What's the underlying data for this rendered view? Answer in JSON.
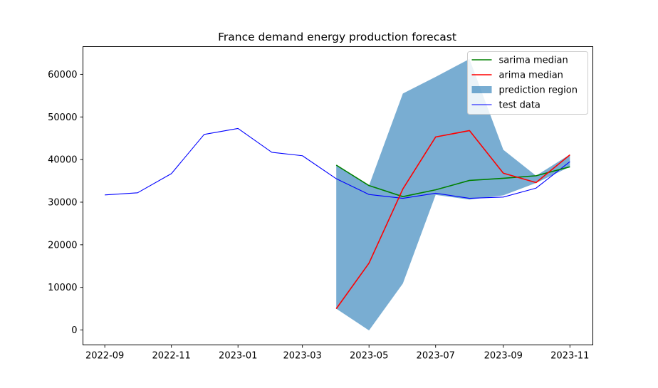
{
  "chart_data": {
    "type": "line",
    "title": "France demand energy production forecast",
    "xlabel": "",
    "ylabel": "",
    "x_ticks": [
      "2022-09",
      "2022-11",
      "2023-01",
      "2023-03",
      "2023-05",
      "2023-07",
      "2023-09",
      "2023-11"
    ],
    "y_ticks": [
      0,
      10000,
      20000,
      30000,
      40000,
      50000,
      60000
    ],
    "xlim": [
      "2022-08-12",
      "2023-11-22"
    ],
    "ylim": [
      -3500,
      66500
    ],
    "grid": false,
    "legend_position": "top-right",
    "series": [
      {
        "name": "sarima median",
        "color": "#008000",
        "x": [
          "2023-04",
          "2023-05",
          "2023-06",
          "2023-07",
          "2023-08",
          "2023-09",
          "2023-10",
          "2023-11"
        ],
        "values": [
          38700,
          33900,
          31300,
          32900,
          35100,
          35600,
          36200,
          38300
        ]
      },
      {
        "name": "arima median",
        "color": "#ff0000",
        "x": [
          "2023-04",
          "2023-05",
          "2023-06",
          "2023-07",
          "2023-08",
          "2023-09",
          "2023-10",
          "2023-11"
        ],
        "values": [
          5000,
          15700,
          33100,
          45300,
          46800,
          36800,
          34600,
          41100
        ]
      },
      {
        "name": "test data",
        "color": "#0000ff",
        "x": [
          "2022-09",
          "2022-10",
          "2022-11",
          "2022-12",
          "2023-01",
          "2023-02",
          "2023-03",
          "2023-04",
          "2023-05",
          "2023-06",
          "2023-07",
          "2023-08",
          "2023-09",
          "2023-10",
          "2023-11"
        ],
        "values": [
          31700,
          32200,
          36700,
          45900,
          47300,
          41700,
          40900,
          35500,
          31800,
          30900,
          32100,
          30900,
          31200,
          33300,
          39500
        ]
      }
    ],
    "band": {
      "name": "prediction region",
      "color": "#1f77b4",
      "x": [
        "2023-04",
        "2023-05",
        "2023-06",
        "2023-07",
        "2023-08",
        "2023-09",
        "2023-10",
        "2023-11"
      ],
      "upper": [
        38700,
        33900,
        55500,
        59400,
        63600,
        42300,
        36200,
        41200
      ],
      "lower": [
        5000,
        -100,
        10900,
        31700,
        30600,
        31600,
        34500,
        38300
      ]
    }
  }
}
